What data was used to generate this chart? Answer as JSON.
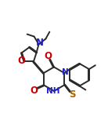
{
  "bg_color": "#ffffff",
  "line_color": "#2a2a2a",
  "line_width": 1.4,
  "font_size": 7.5,
  "figsize": [
    1.38,
    1.58
  ],
  "dpi": 100,
  "xlim": [
    0,
    14
  ],
  "ylim": [
    0,
    16
  ]
}
